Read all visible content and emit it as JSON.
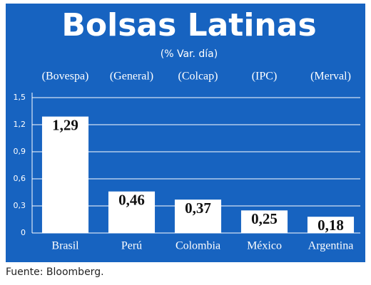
{
  "chart_data": {
    "type": "bar",
    "title": "Bolsas Latinas",
    "subtitle": "(% Var. día)",
    "annotations": [
      "(Bovespa)",
      "(General)",
      "(Colcap)",
      "(IPC)",
      "(Merval)"
    ],
    "categories": [
      "Brasil",
      "Perú",
      "Colombia",
      "México",
      "Argentina"
    ],
    "values": [
      1.29,
      0.46,
      0.37,
      0.25,
      0.18
    ],
    "value_labels": [
      "1,29",
      "0,46",
      "0,37",
      "0,25",
      "0,18"
    ],
    "color": "#ffffff",
    "ylim": [
      0,
      1.5
    ],
    "yticks": [
      0,
      {
        "value": 0.3,
        "label": "0,3"
      },
      {
        "value": 0.6,
        "label": "0,6"
      },
      {
        "value": 0.9,
        "label": "0,9"
      },
      {
        "value": 1.2,
        "label": "1,2"
      },
      {
        "value": 1.5,
        "label": "1,5"
      }
    ],
    "grid": true,
    "source": "Fuente: Bloomberg."
  }
}
